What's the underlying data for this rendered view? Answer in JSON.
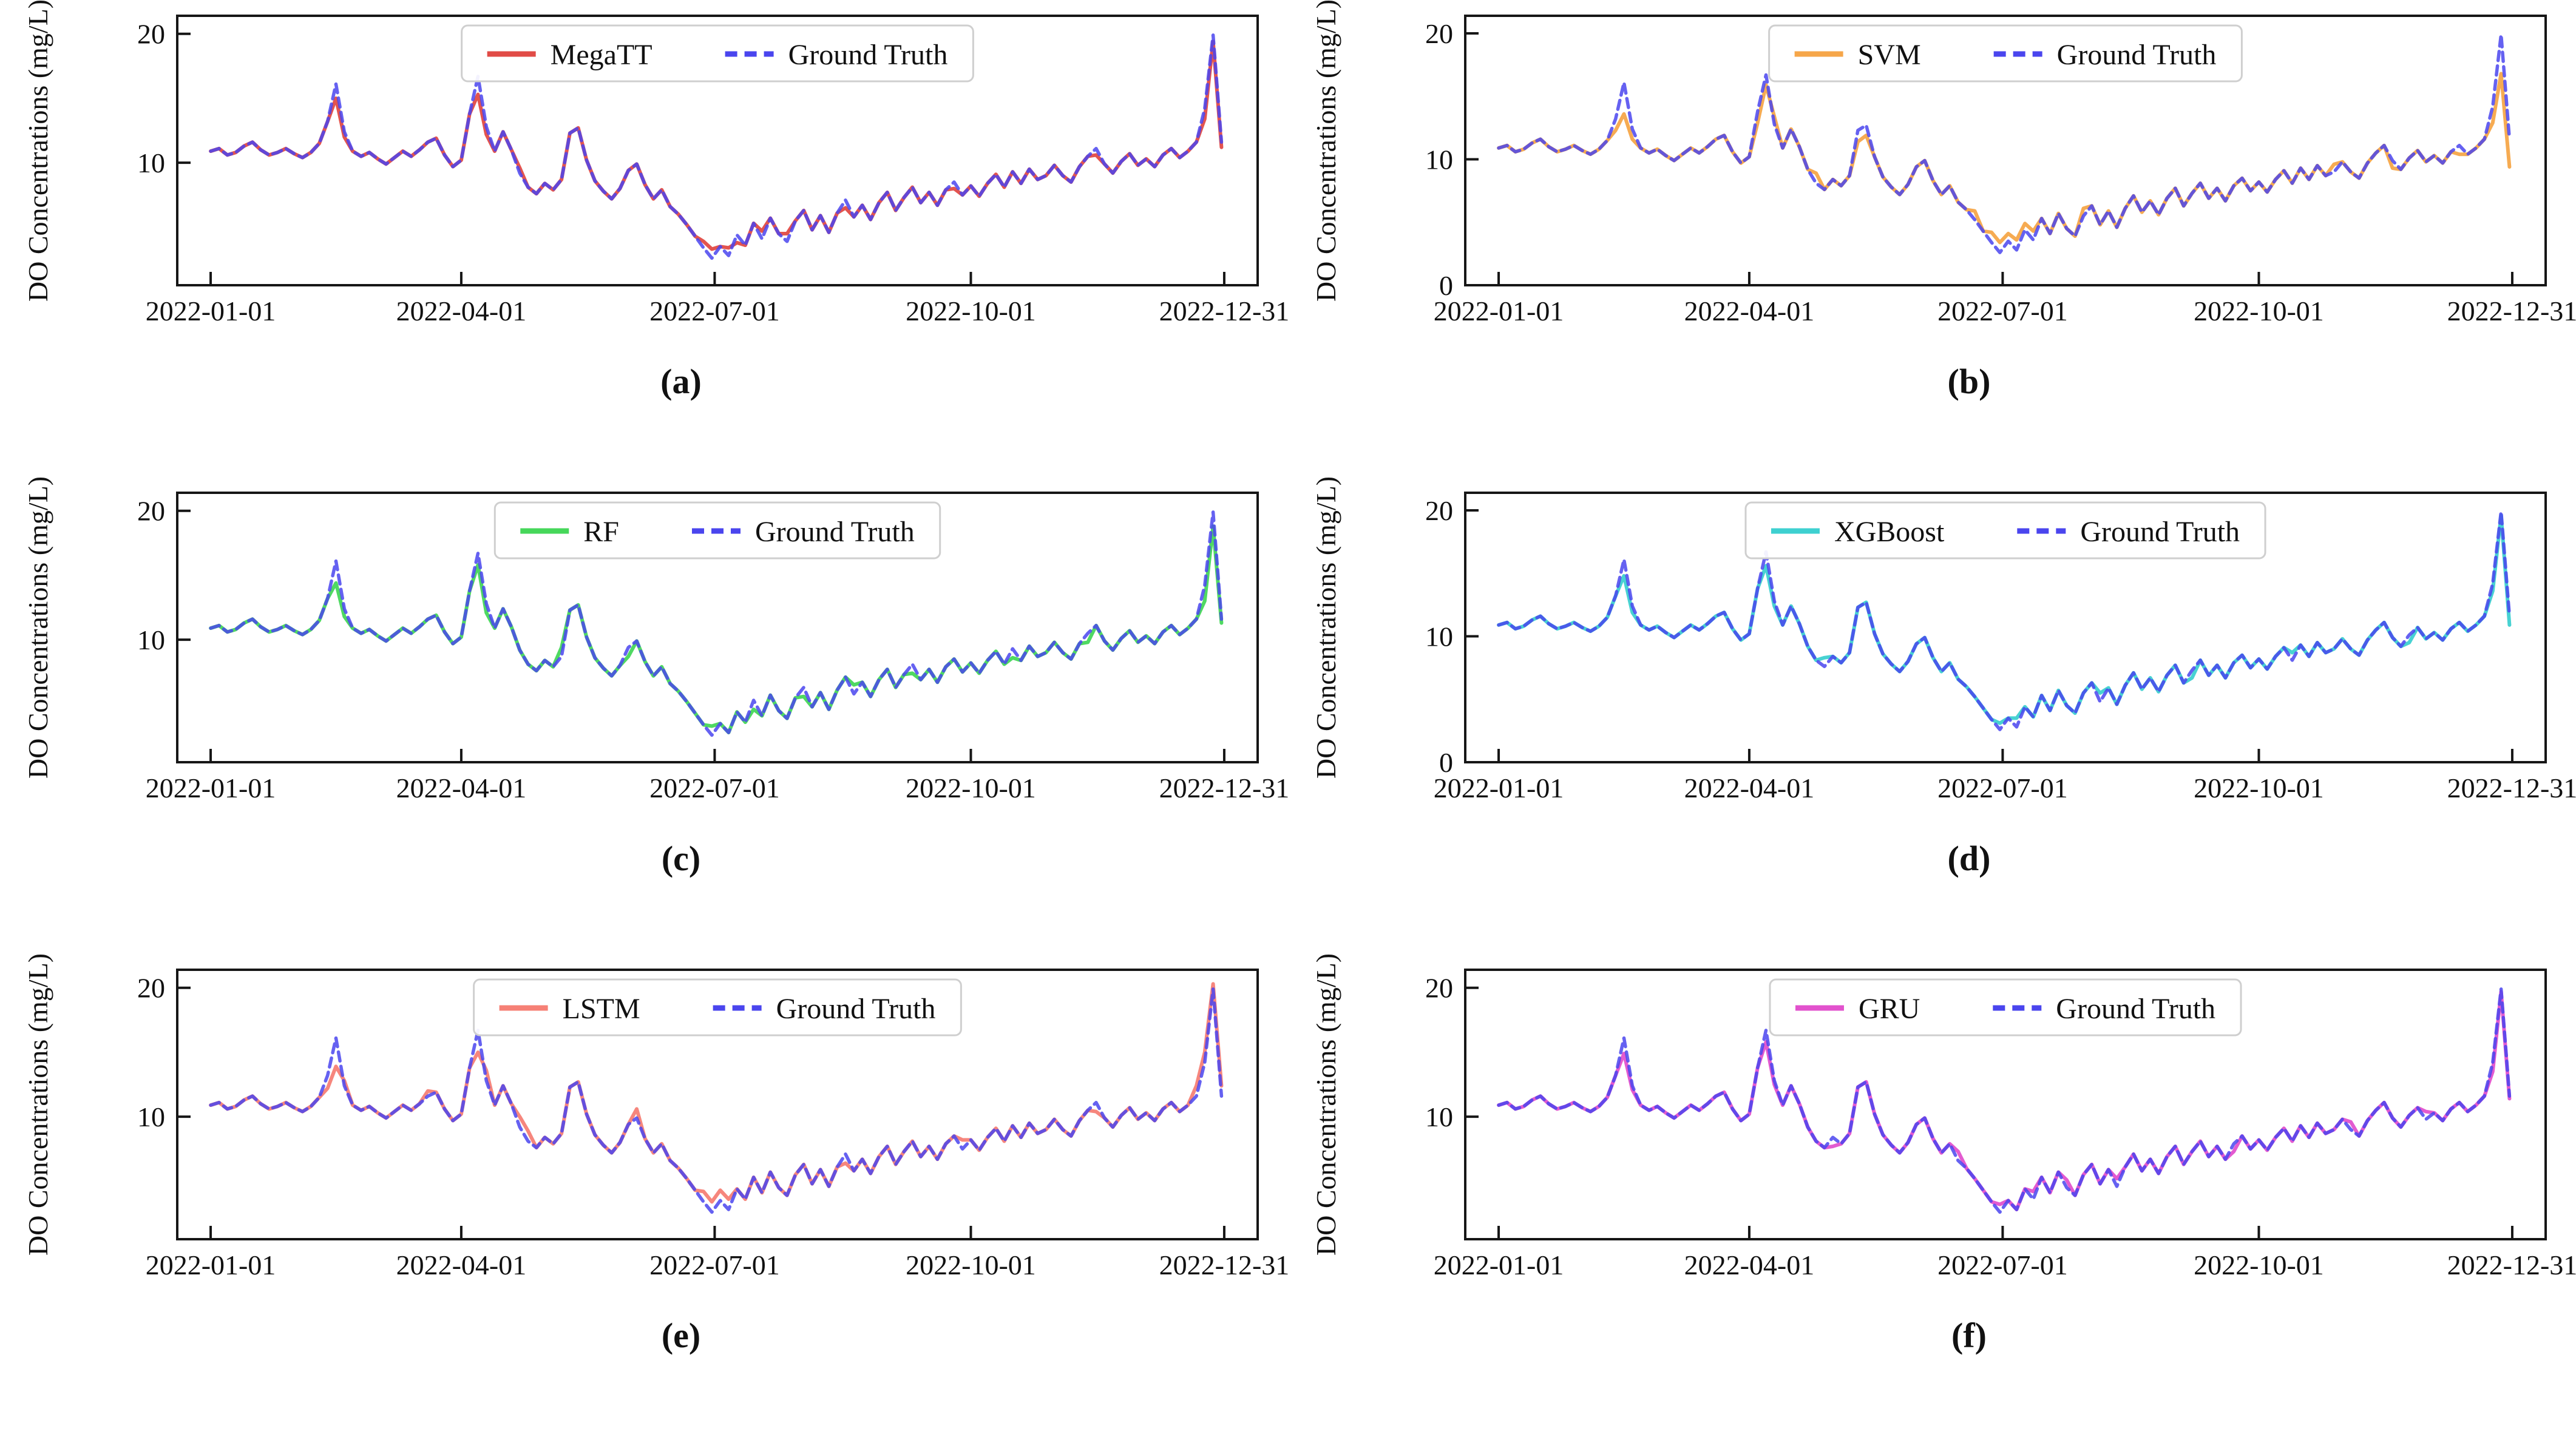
{
  "figure": {
    "ylabel": "DO Concentrations (mg/L)",
    "x_tick_labels": [
      "2022-01-01",
      "2022-04-01",
      "2022-07-01",
      "2022-10-01",
      "2022-12-31"
    ],
    "x_tick_days": [
      0,
      90,
      181,
      273,
      364
    ],
    "x_step_days": 3,
    "xlim_days": [
      -12,
      376
    ],
    "background_color": "#ffffff",
    "spine_color": "#161616"
  },
  "ground_truth": {
    "label": "Ground Truth",
    "color": "#4a45ee",
    "line_style": "dashed",
    "y": [
      10.9,
      11.1,
      10.6,
      10.8,
      11.3,
      11.6,
      11.0,
      10.6,
      10.8,
      11.1,
      10.7,
      10.4,
      10.8,
      11.5,
      13.2,
      16.1,
      12.4,
      10.9,
      10.5,
      10.8,
      10.3,
      9.9,
      10.4,
      10.9,
      10.5,
      11.0,
      11.6,
      11.9,
      10.6,
      9.7,
      10.2,
      13.8,
      16.7,
      12.8,
      10.9,
      12.4,
      11.0,
      9.2,
      8.1,
      7.6,
      8.4,
      7.9,
      8.7,
      12.3,
      12.7,
      10.2,
      8.6,
      7.8,
      7.2,
      8.0,
      9.4,
      9.9,
      8.3,
      7.2,
      7.9,
      6.6,
      6.0,
      5.2,
      4.3,
      3.4,
      2.6,
      3.5,
      2.8,
      4.4,
      3.6,
      5.3,
      4.1,
      5.7,
      4.5,
      3.9,
      5.5,
      6.3,
      4.8,
      5.9,
      4.6,
      6.1,
      7.1,
      5.8,
      6.7,
      5.6,
      6.9,
      7.7,
      6.3,
      7.3,
      8.1,
      6.9,
      7.7,
      6.7,
      7.9,
      8.5,
      7.5,
      8.2,
      7.4,
      8.4,
      9.1,
      8.1,
      9.3,
      8.4,
      9.5,
      8.7,
      9.0,
      9.8,
      9.0,
      8.5,
      9.7,
      10.5,
      11.1,
      9.9,
      9.2,
      10.1,
      10.7,
      9.8,
      10.3,
      9.7,
      10.6,
      11.1,
      10.4,
      10.9,
      11.6,
      14.2,
      19.9,
      11.6
    ]
  },
  "chart_data": [
    {
      "type": "line",
      "letter": "a",
      "panel_label": "(a)",
      "model_label": "MegaTT",
      "model_color": "#e14b46",
      "y_ticks": [
        10,
        20
      ],
      "ylim": [
        0.5,
        21.4
      ],
      "model_y": [
        10.9,
        11.1,
        10.6,
        10.8,
        11.3,
        11.6,
        11.0,
        10.6,
        10.8,
        11.1,
        10.7,
        10.4,
        10.8,
        11.5,
        13.2,
        15.0,
        12.0,
        10.9,
        10.5,
        10.8,
        10.3,
        9.9,
        10.4,
        10.9,
        10.5,
        11.0,
        11.6,
        11.9,
        10.6,
        9.7,
        10.2,
        13.8,
        15.3,
        12.2,
        10.9,
        12.4,
        11.0,
        9.6,
        8.1,
        7.6,
        8.4,
        7.9,
        8.7,
        12.3,
        12.7,
        10.2,
        8.6,
        7.8,
        7.2,
        8.0,
        9.4,
        9.9,
        8.3,
        7.2,
        7.9,
        6.6,
        6.0,
        5.2,
        4.3,
        3.9,
        3.3,
        3.5,
        3.4,
        3.8,
        3.6,
        5.3,
        4.7,
        5.7,
        4.5,
        4.5,
        5.5,
        6.3,
        4.8,
        5.9,
        4.6,
        6.1,
        6.5,
        5.8,
        6.7,
        5.6,
        6.9,
        7.7,
        6.3,
        7.3,
        8.1,
        6.9,
        7.7,
        6.7,
        7.9,
        8.0,
        7.5,
        8.2,
        7.4,
        8.4,
        9.1,
        8.1,
        9.3,
        8.4,
        9.5,
        8.7,
        9.0,
        9.8,
        9.0,
        8.5,
        9.7,
        10.5,
        10.6,
        9.9,
        9.2,
        10.1,
        10.7,
        9.8,
        10.3,
        9.7,
        10.6,
        11.1,
        10.4,
        10.9,
        11.6,
        13.4,
        19.4,
        11.2
      ]
    },
    {
      "type": "line",
      "letter": "b",
      "panel_label": "(b)",
      "model_label": "SVM",
      "model_color": "#f6a649",
      "y_ticks": [
        0,
        10,
        20
      ],
      "ylim": [
        0,
        21.4
      ],
      "model_y": [
        10.9,
        11.1,
        10.6,
        10.8,
        11.3,
        11.6,
        11.0,
        10.6,
        10.8,
        11.1,
        10.7,
        10.4,
        10.8,
        11.5,
        12.3,
        13.6,
        11.6,
        10.9,
        10.5,
        10.8,
        10.3,
        9.9,
        10.4,
        10.9,
        10.5,
        11.0,
        11.6,
        11.9,
        10.6,
        9.7,
        10.2,
        12.9,
        15.9,
        13.4,
        10.9,
        12.4,
        11.0,
        9.2,
        8.9,
        7.6,
        8.4,
        7.9,
        8.7,
        11.4,
        11.9,
        10.2,
        8.6,
        7.8,
        7.2,
        8.0,
        9.4,
        9.9,
        8.3,
        7.2,
        7.9,
        6.6,
        6.0,
        5.9,
        4.3,
        4.2,
        3.4,
        4.1,
        3.6,
        4.9,
        4.3,
        5.3,
        4.1,
        5.7,
        4.5,
        3.9,
        6.1,
        6.3,
        4.8,
        5.9,
        4.6,
        6.1,
        7.1,
        5.8,
        6.7,
        5.6,
        6.9,
        7.7,
        6.3,
        7.3,
        8.1,
        6.9,
        7.7,
        6.7,
        7.9,
        8.5,
        7.5,
        8.2,
        7.4,
        8.4,
        9.1,
        8.1,
        9.3,
        8.4,
        9.5,
        8.7,
        9.6,
        9.8,
        9.0,
        8.5,
        9.7,
        10.5,
        11.1,
        9.3,
        9.2,
        10.1,
        10.7,
        9.8,
        10.3,
        9.7,
        10.6,
        10.4,
        10.4,
        10.9,
        11.6,
        12.9,
        16.8,
        9.4
      ]
    },
    {
      "type": "line",
      "letter": "c",
      "panel_label": "(c)",
      "model_label": "RF",
      "model_color": "#46d75a",
      "y_ticks": [
        10,
        20
      ],
      "ylim": [
        0.5,
        21.4
      ],
      "model_y": [
        10.9,
        11.1,
        10.6,
        10.8,
        11.3,
        11.6,
        11.0,
        10.6,
        10.8,
        11.1,
        10.7,
        10.4,
        10.8,
        11.5,
        13.2,
        14.4,
        11.8,
        10.9,
        10.5,
        10.8,
        10.3,
        9.9,
        10.4,
        10.9,
        10.5,
        11.0,
        11.6,
        11.9,
        10.6,
        9.7,
        10.2,
        13.8,
        15.8,
        12.1,
        10.9,
        12.4,
        11.0,
        9.2,
        8.1,
        7.6,
        8.4,
        7.9,
        9.4,
        12.3,
        12.7,
        10.2,
        8.6,
        7.8,
        7.2,
        8.0,
        8.7,
        9.9,
        8.3,
        7.2,
        7.9,
        6.6,
        6.0,
        5.2,
        4.3,
        3.4,
        3.3,
        3.5,
        2.8,
        4.4,
        3.6,
        4.6,
        4.1,
        5.7,
        4.5,
        3.9,
        5.5,
        5.6,
        4.8,
        5.9,
        4.6,
        6.1,
        7.1,
        6.5,
        6.7,
        5.6,
        6.9,
        7.7,
        6.3,
        7.3,
        7.4,
        6.9,
        7.7,
        6.7,
        7.9,
        8.5,
        7.5,
        8.2,
        7.4,
        8.4,
        9.1,
        8.1,
        8.6,
        8.4,
        9.5,
        8.7,
        9.0,
        9.8,
        9.0,
        8.5,
        9.7,
        9.8,
        11.1,
        9.9,
        9.2,
        10.1,
        10.7,
        9.8,
        10.3,
        9.7,
        10.6,
        11.1,
        10.4,
        10.9,
        11.6,
        13.0,
        18.8,
        11.3
      ]
    },
    {
      "type": "line",
      "letter": "d",
      "panel_label": "(d)",
      "model_label": "XGBoost",
      "model_color": "#3ed0d0",
      "y_ticks": [
        0,
        10,
        20
      ],
      "ylim": [
        0,
        21.4
      ],
      "model_y": [
        10.9,
        11.1,
        10.6,
        10.8,
        11.3,
        11.6,
        11.0,
        10.6,
        10.8,
        11.1,
        10.7,
        10.4,
        10.8,
        11.5,
        13.2,
        14.8,
        11.9,
        10.9,
        10.5,
        10.8,
        10.3,
        9.9,
        10.4,
        10.9,
        10.5,
        11.0,
        11.6,
        11.9,
        10.6,
        9.7,
        10.2,
        13.8,
        15.6,
        12.4,
        10.9,
        12.4,
        11.0,
        9.2,
        8.1,
        8.3,
        8.4,
        7.9,
        8.7,
        12.3,
        12.7,
        10.2,
        8.6,
        7.8,
        7.2,
        8.0,
        9.4,
        9.9,
        8.3,
        7.2,
        7.9,
        6.6,
        6.0,
        5.2,
        4.3,
        3.4,
        3.1,
        3.5,
        3.5,
        4.4,
        3.6,
        5.3,
        4.1,
        5.7,
        4.5,
        3.9,
        5.5,
        6.3,
        5.5,
        5.9,
        4.6,
        6.1,
        7.1,
        5.8,
        6.7,
        5.6,
        6.9,
        7.7,
        6.3,
        6.7,
        8.1,
        6.9,
        7.7,
        6.7,
        7.9,
        8.5,
        7.5,
        8.2,
        7.4,
        8.4,
        9.1,
        8.7,
        9.3,
        8.4,
        9.5,
        8.7,
        9.0,
        9.8,
        9.0,
        8.5,
        9.7,
        10.5,
        11.1,
        9.9,
        9.2,
        9.5,
        10.7,
        9.8,
        10.3,
        9.7,
        10.6,
        11.1,
        10.4,
        10.9,
        11.6,
        13.6,
        19.6,
        10.9
      ]
    },
    {
      "type": "line",
      "letter": "e",
      "panel_label": "(e)",
      "model_label": "LSTM",
      "model_color": "#f68076",
      "y_ticks": [
        10,
        20
      ],
      "ylim": [
        0.5,
        21.4
      ],
      "model_y": [
        10.9,
        11.1,
        10.6,
        10.8,
        11.3,
        11.6,
        11.0,
        10.6,
        10.8,
        11.1,
        10.7,
        10.4,
        10.8,
        11.5,
        12.2,
        13.9,
        12.8,
        10.9,
        10.5,
        10.8,
        10.3,
        9.9,
        10.4,
        10.9,
        10.5,
        11.0,
        12.0,
        11.9,
        10.6,
        9.7,
        10.2,
        13.8,
        15.0,
        13.6,
        10.9,
        12.4,
        11.0,
        10.0,
        8.9,
        7.6,
        8.4,
        7.9,
        8.7,
        12.3,
        12.7,
        10.2,
        8.6,
        7.8,
        7.2,
        8.0,
        9.4,
        10.6,
        8.3,
        7.2,
        7.9,
        6.6,
        6.0,
        5.2,
        4.3,
        4.2,
        3.4,
        4.3,
        3.6,
        4.4,
        3.6,
        5.3,
        4.1,
        5.7,
        4.5,
        3.9,
        5.5,
        6.3,
        4.8,
        5.9,
        4.6,
        6.1,
        6.4,
        5.8,
        6.7,
        5.6,
        6.9,
        7.7,
        6.3,
        7.3,
        8.1,
        6.9,
        7.7,
        6.7,
        7.9,
        8.5,
        8.2,
        8.2,
        7.4,
        8.4,
        9.1,
        8.1,
        9.3,
        8.4,
        9.5,
        8.7,
        9.0,
        9.8,
        9.0,
        8.5,
        9.7,
        10.5,
        10.4,
        9.9,
        9.2,
        10.1,
        10.7,
        9.8,
        10.3,
        9.7,
        10.6,
        11.1,
        10.4,
        10.9,
        12.4,
        15.0,
        20.3,
        12.4
      ]
    },
    {
      "type": "line",
      "letter": "f",
      "panel_label": "(f)",
      "model_label": "GRU",
      "model_color": "#e252cd",
      "y_ticks": [
        10,
        20
      ],
      "ylim": [
        0.5,
        21.4
      ],
      "model_y": [
        10.9,
        11.1,
        10.6,
        10.8,
        11.3,
        11.6,
        11.0,
        10.6,
        10.8,
        11.1,
        10.7,
        10.4,
        10.8,
        11.5,
        13.2,
        14.9,
        12.1,
        10.9,
        10.5,
        10.8,
        10.3,
        9.9,
        10.4,
        10.9,
        10.5,
        11.0,
        11.6,
        11.9,
        10.6,
        9.7,
        10.2,
        13.8,
        15.8,
        12.5,
        10.9,
        12.4,
        11.0,
        9.2,
        8.1,
        7.6,
        7.7,
        7.9,
        8.7,
        12.3,
        12.7,
        10.2,
        8.6,
        7.8,
        7.2,
        8.0,
        9.4,
        9.9,
        8.3,
        7.2,
        7.9,
        7.3,
        6.0,
        5.2,
        4.3,
        3.4,
        3.2,
        3.5,
        2.8,
        4.4,
        4.2,
        5.3,
        4.1,
        5.7,
        5.1,
        3.9,
        5.5,
        6.3,
        4.8,
        5.9,
        5.2,
        6.1,
        7.1,
        5.8,
        6.7,
        5.6,
        6.9,
        7.7,
        6.3,
        7.3,
        8.1,
        6.9,
        7.7,
        6.7,
        7.3,
        8.5,
        7.5,
        8.2,
        7.4,
        8.4,
        9.1,
        8.1,
        9.3,
        8.4,
        9.5,
        8.7,
        9.0,
        9.8,
        9.6,
        8.5,
        9.7,
        10.5,
        11.1,
        9.9,
        9.2,
        10.1,
        10.7,
        10.4,
        10.3,
        9.7,
        10.6,
        11.1,
        10.4,
        10.9,
        11.6,
        13.5,
        19.7,
        11.4
      ]
    }
  ]
}
